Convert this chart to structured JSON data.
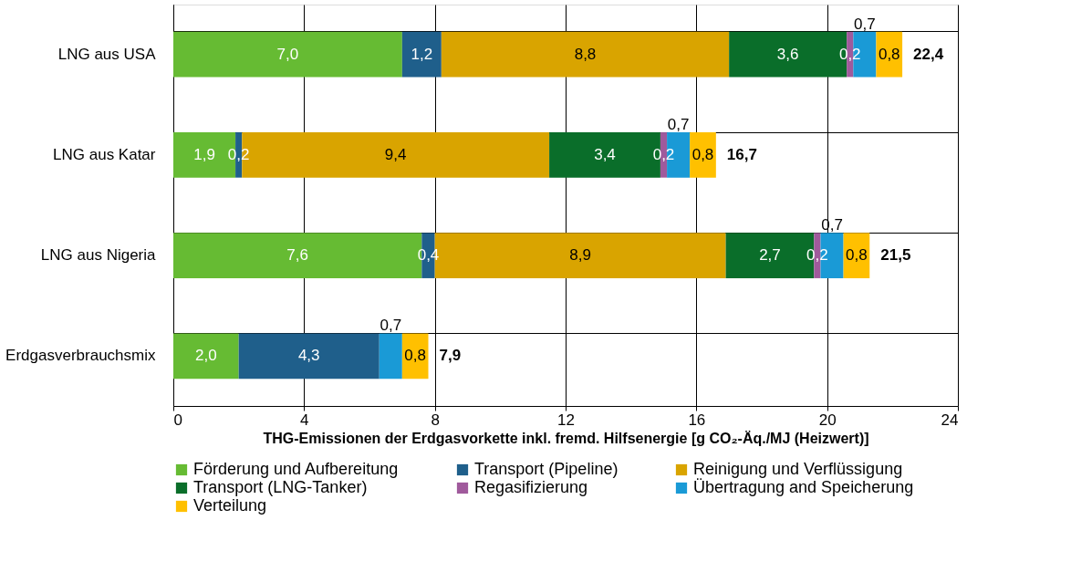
{
  "chart_data": {
    "type": "bar",
    "orientation": "horizontal",
    "stacked": true,
    "xlabel": "THG-Emissionen  der Erdgasvorkette inkl. fremd. Hilfsenergie [g CO₂-Äq./MJ (Heizwert)]",
    "categories": [
      "LNG aus USA",
      "LNG aus Katar",
      "LNG aus Nigeria",
      "Erdgasverbrauchsmix"
    ],
    "series": [
      {
        "name": "Förderung und Aufbereitung",
        "color": "#66bb33",
        "values": [
          7.0,
          1.9,
          7.6,
          2.0
        ],
        "value_labels": [
          "7,0",
          "1,9",
          "7,6",
          "2,0"
        ]
      },
      {
        "name": "Transport (Pipeline)",
        "color": "#1f5f8b",
        "values": [
          1.2,
          0.2,
          0.4,
          4.3
        ],
        "value_labels": [
          "1,2",
          "0,2",
          "0,4",
          "4,3"
        ]
      },
      {
        "name": "Reinigung und Verflüssigung",
        "color": "#d9a400",
        "values": [
          8.8,
          9.4,
          8.9,
          null
        ],
        "value_labels": [
          "8,8",
          "9,4",
          "8,9",
          null
        ]
      },
      {
        "name": "Transport (LNG-Tanker)",
        "color": "#0a6e2a",
        "values": [
          3.6,
          3.4,
          2.7,
          null
        ],
        "value_labels": [
          "3,6",
          "3,4",
          "2,7",
          null
        ]
      },
      {
        "name": "Regasifizierung",
        "color": "#a05a9c",
        "values": [
          0.2,
          0.2,
          0.2,
          null
        ],
        "value_labels": [
          "0,2",
          "0,2",
          "0,2",
          null
        ]
      },
      {
        "name": "Übertragung and Speicherung",
        "color": "#1a9ad6",
        "values": [
          0.7,
          0.7,
          0.7,
          0.7
        ],
        "value_labels": [
          "0,7",
          "0,7",
          "0,7",
          "0,7"
        ]
      },
      {
        "name": "Verteilung",
        "color": "#ffc000",
        "values": [
          0.8,
          0.8,
          0.8,
          0.8
        ],
        "value_labels": [
          "0,8",
          "0,8",
          "0,8",
          "0,8"
        ]
      }
    ],
    "totals": [
      "22,4",
      "16,7",
      "21,5",
      "7,9"
    ],
    "xlim": [
      0,
      24
    ],
    "xticks": [
      0,
      4,
      8,
      12,
      16,
      20,
      24
    ],
    "grid": true,
    "legend": "bottom"
  }
}
